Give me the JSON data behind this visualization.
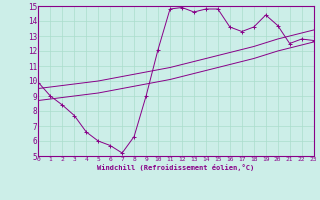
{
  "xlabel": "Windchill (Refroidissement éolien,°C)",
  "background_color": "#cceee8",
  "line_color": "#880088",
  "grid_color": "#aaddcc",
  "xlim": [
    0,
    23
  ],
  "ylim": [
    5,
    15
  ],
  "xticks": [
    0,
    1,
    2,
    3,
    4,
    5,
    6,
    7,
    8,
    9,
    10,
    11,
    12,
    13,
    14,
    15,
    16,
    17,
    18,
    19,
    20,
    21,
    22,
    23
  ],
  "yticks": [
    5,
    6,
    7,
    8,
    9,
    10,
    11,
    12,
    13,
    14,
    15
  ],
  "series1_x": [
    0,
    1,
    2,
    3,
    4,
    5,
    6,
    7,
    8,
    9,
    10,
    11,
    12,
    13,
    14,
    15,
    16,
    17,
    18,
    19,
    20,
    21,
    22,
    23
  ],
  "series1_y": [
    9.9,
    9.0,
    8.4,
    7.7,
    6.6,
    6.0,
    5.7,
    5.2,
    6.3,
    9.0,
    12.1,
    14.8,
    14.9,
    14.6,
    14.8,
    14.8,
    13.6,
    13.3,
    13.6,
    14.4,
    13.7,
    12.5,
    12.8,
    12.7
  ],
  "series2_x": [
    0,
    1,
    2,
    3,
    4,
    5,
    6,
    7,
    8,
    9,
    10,
    11,
    12,
    13,
    14,
    15,
    16,
    17,
    18,
    19,
    20,
    21,
    22,
    23
  ],
  "series2_y": [
    9.5,
    9.6,
    9.7,
    9.8,
    9.9,
    10.0,
    10.15,
    10.3,
    10.45,
    10.6,
    10.75,
    10.9,
    11.1,
    11.3,
    11.5,
    11.7,
    11.9,
    12.1,
    12.3,
    12.55,
    12.8,
    13.0,
    13.2,
    13.4
  ],
  "series3_x": [
    0,
    1,
    2,
    3,
    4,
    5,
    6,
    7,
    8,
    9,
    10,
    11,
    12,
    13,
    14,
    15,
    16,
    17,
    18,
    19,
    20,
    21,
    22,
    23
  ],
  "series3_y": [
    8.7,
    8.8,
    8.9,
    9.0,
    9.1,
    9.2,
    9.35,
    9.5,
    9.65,
    9.8,
    9.95,
    10.1,
    10.3,
    10.5,
    10.7,
    10.9,
    11.1,
    11.3,
    11.5,
    11.75,
    12.0,
    12.2,
    12.4,
    12.6
  ]
}
